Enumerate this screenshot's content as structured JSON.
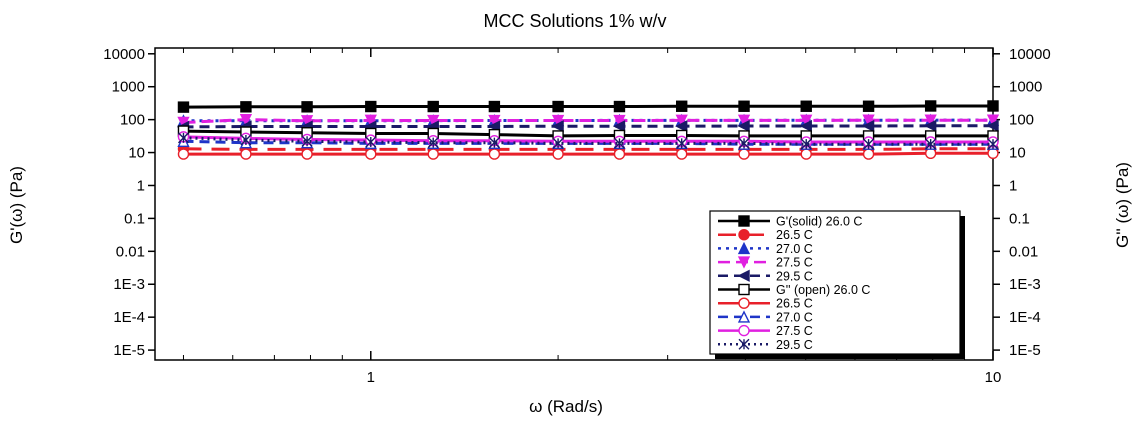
{
  "chart_data": {
    "type": "line",
    "title": "MCC Solutions 1% w/v",
    "xlabel": "ω (Rad/s)",
    "ylabel_left": "G'(ω) (Pa)",
    "ylabel_right": "G'' (ω) (Pa)",
    "x_scale": "log",
    "y_scale": "log",
    "xlim": [
      0.45,
      10
    ],
    "ylim": [
      5e-06,
      15000
    ],
    "x_ticks": [
      {
        "value": 1,
        "label": "1"
      },
      {
        "value": 10,
        "label": "10"
      }
    ],
    "y_ticks": [
      {
        "value": 10000,
        "label": "10000"
      },
      {
        "value": 1000,
        "label": "1000"
      },
      {
        "value": 100,
        "label": "100"
      },
      {
        "value": 10,
        "label": "10"
      },
      {
        "value": 1,
        "label": "1"
      },
      {
        "value": 0.1,
        "label": "0.1"
      },
      {
        "value": 0.01,
        "label": "0.01"
      },
      {
        "value": 0.001,
        "label": "1E-3"
      },
      {
        "value": 0.0001,
        "label": "1E-4"
      },
      {
        "value": 1e-05,
        "label": "1E-5"
      }
    ],
    "grid": false,
    "legend_position": "bottom-right",
    "x": [
      0.5,
      0.63,
      0.79,
      1.0,
      1.26,
      1.58,
      2.0,
      2.51,
      3.16,
      3.98,
      5.01,
      6.31,
      7.94,
      10.0
    ],
    "series": [
      {
        "name": "G'(solid) 26.0 C",
        "color": "#000000",
        "marker": "square-filled",
        "dash": "",
        "values": [
          240,
          245,
          245,
          250,
          250,
          250,
          250,
          250,
          255,
          255,
          255,
          255,
          260,
          260
        ]
      },
      {
        "name": "26.5 C",
        "color": "#e8202a",
        "marker": "circle-filled",
        "dash": "18,10",
        "values": [
          13,
          12.5,
          12.5,
          12.5,
          12.5,
          12.5,
          12.5,
          12.5,
          12.5,
          12.5,
          12.5,
          12.5,
          13,
          13
        ]
      },
      {
        "name": "27.0 C",
        "color": "#1f35c8",
        "marker": "triangle-up-filled",
        "dash": "3,5",
        "values": [
          92,
          92,
          93,
          93,
          93,
          94,
          94,
          95,
          95,
          95,
          96,
          96,
          96,
          97
        ]
      },
      {
        "name": "27.5 C",
        "color": "#e020e0",
        "marker": "triangle-down-filled",
        "dash": "12,6",
        "values": [
          82,
          100,
          92,
          95,
          94,
          94,
          94,
          94,
          95,
          95,
          95,
          96,
          96,
          96
        ]
      },
      {
        "name": "29.5 C",
        "color": "#1a1a66",
        "marker": "triangle-left-filled",
        "dash": "10,6",
        "values": [
          60,
          62,
          62,
          62,
          62,
          62,
          63,
          63,
          63,
          64,
          64,
          64,
          65,
          65
        ]
      },
      {
        "name": "G'' (open) 26.0 C",
        "color": "#000000",
        "marker": "square-open",
        "dash": "",
        "values": [
          45,
          42,
          40,
          38,
          38,
          35,
          32,
          33,
          33,
          32,
          32,
          32,
          32,
          32
        ]
      },
      {
        "name": "26.5 C",
        "color": "#e8202a",
        "marker": "circle-open",
        "dash": "",
        "values": [
          9,
          9,
          9,
          9,
          9,
          9,
          9,
          9,
          9,
          9,
          9,
          9,
          9.5,
          9.5
        ]
      },
      {
        "name": "27.0 C",
        "color": "#1f35c8",
        "marker": "triangle-up-open",
        "dash": "10,6",
        "values": [
          22,
          20,
          20,
          19,
          19,
          19,
          19,
          19,
          19,
          18,
          18,
          18,
          18,
          18
        ]
      },
      {
        "name": "27.5 C",
        "color": "#e020e0",
        "marker": "circle-open",
        "dash": "",
        "values": [
          30,
          27,
          25,
          24,
          23,
          23,
          22,
          22,
          22,
          22,
          21,
          21,
          21,
          21
        ]
      },
      {
        "name": "29.5 C",
        "color": "#1a1a66",
        "marker": "star-open",
        "dash": "2,4",
        "values": [
          28,
          24,
          22,
          21,
          20,
          20,
          19,
          19,
          19,
          19,
          18,
          18,
          18,
          18
        ]
      }
    ]
  }
}
